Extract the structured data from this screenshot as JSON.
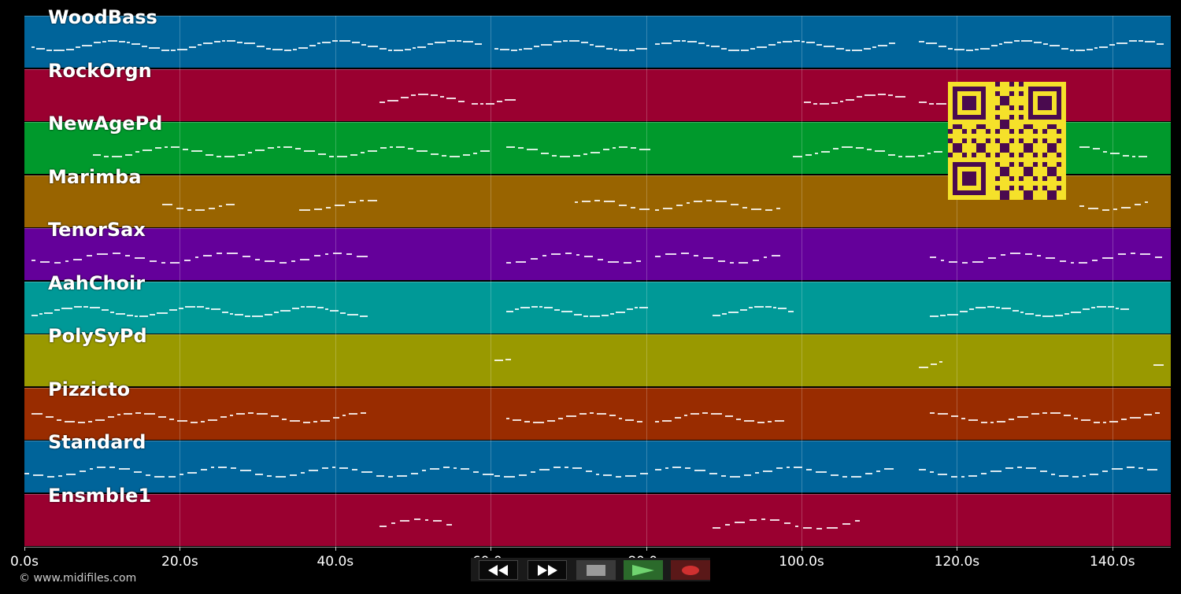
{
  "timeline": {
    "tracks": [
      {
        "name": "WoodBass",
        "color": "#00649a"
      },
      {
        "name": "RockOrgn",
        "color": "#9a0030"
      },
      {
        "name": "NewAgePd",
        "color": "#00992c"
      },
      {
        "name": "Marimba",
        "color": "#996400"
      },
      {
        "name": "TenorSax",
        "color": "#64009a"
      },
      {
        "name": "AahChoir",
        "color": "#009997"
      },
      {
        "name": "PolySyPd",
        "color": "#999900"
      },
      {
        "name": "Pizzicto",
        "color": "#992c00"
      },
      {
        "name": "Standard",
        "color": "#00649a"
      },
      {
        "name": "Ensmble1",
        "color": "#9a0030"
      }
    ],
    "axis_ticks": [
      "0.0s",
      "20.0s",
      "40.0s",
      "60.0s",
      "80.0s",
      "100.0s",
      "120.0s",
      "140.0s"
    ]
  },
  "footer": {
    "copyright": "© www.midifiles.com"
  },
  "player_controls": {
    "rewind_icon": "rewind-icon",
    "fast_forward_icon": "fast-forward-icon",
    "stop_icon": "stop-icon",
    "play_icon": "play-icon",
    "record_icon": "record-icon"
  },
  "qr_code": {
    "icon": "qr-code-icon",
    "fg_color": "#4a0a4f",
    "bg_color": "#f5e12a"
  }
}
